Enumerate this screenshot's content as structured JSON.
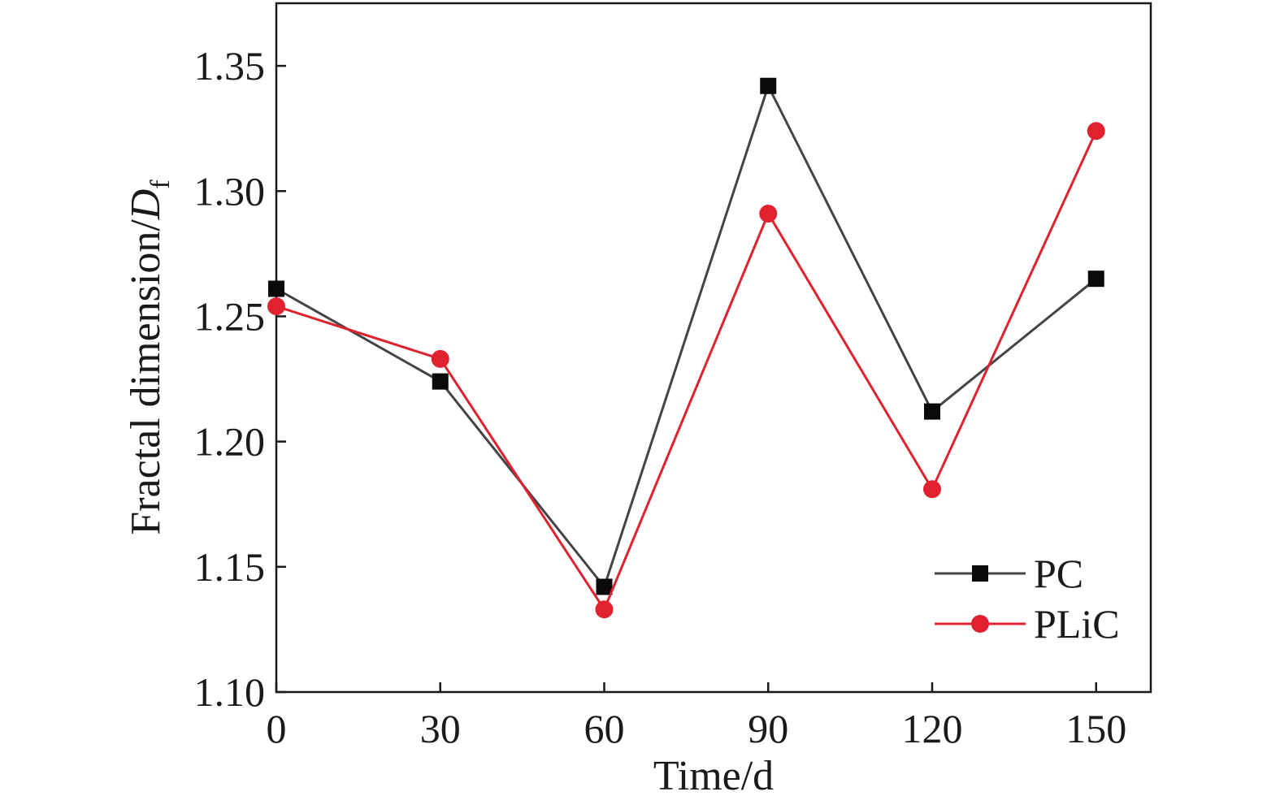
{
  "chart_data": {
    "type": "line",
    "xlabel": "Time/d",
    "ylabel_main": "Fractal dimension/",
    "ylabel_symbol": "D",
    "ylabel_subscript": "f",
    "xlim": [
      0,
      160
    ],
    "ylim": [
      1.1,
      1.375
    ],
    "x_ticks": [
      0,
      30,
      60,
      90,
      120,
      150
    ],
    "x_tick_labels": [
      "0",
      "30",
      "60",
      "90",
      "120",
      "150"
    ],
    "y_ticks": [
      1.1,
      1.15,
      1.2,
      1.25,
      1.3,
      1.35
    ],
    "y_tick_labels": [
      "1.10",
      "1.15",
      "1.20",
      "1.25",
      "1.30",
      "1.35"
    ],
    "grid": false,
    "legend_position": "bottom-right",
    "x": [
      0,
      30,
      60,
      90,
      120,
      150
    ],
    "series": [
      {
        "name": "PC",
        "marker": "square",
        "line_color": "#444448",
        "marker_color": "#0a0a0a",
        "values": [
          1.261,
          1.224,
          1.142,
          1.342,
          1.212,
          1.265
        ]
      },
      {
        "name": "PLiC",
        "marker": "circle",
        "line_color": "#e0222f",
        "marker_color": "#e0222f",
        "values": [
          1.254,
          1.233,
          1.133,
          1.291,
          1.181,
          1.324
        ]
      }
    ]
  }
}
